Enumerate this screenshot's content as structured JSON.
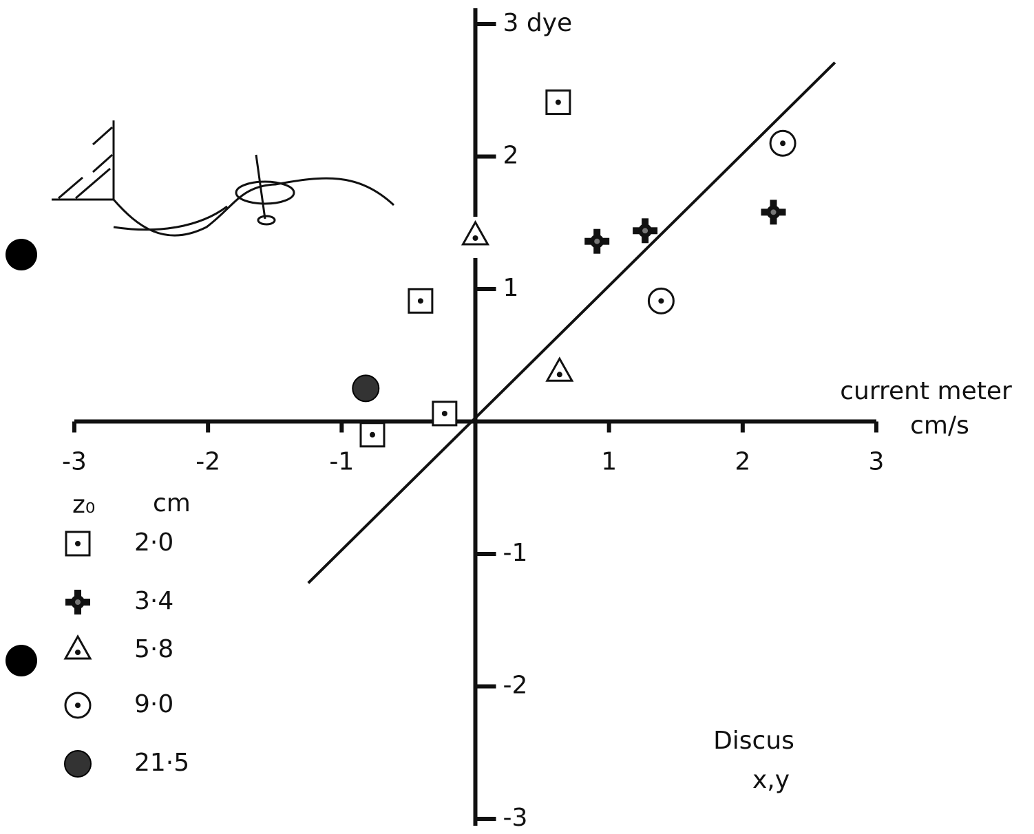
{
  "chart_data": {
    "type": "scatter",
    "xlabel": "current meter",
    "xunit": "cm/s",
    "xlim": [
      -3,
      3
    ],
    "ylim": [
      -3,
      3
    ],
    "xticks": [
      -3,
      -2,
      -1,
      1,
      2,
      3
    ],
    "yticks": [
      -3,
      -2,
      -1,
      1,
      2,
      {
        "value": 3,
        "label": "3 dye"
      }
    ],
    "legend_title": [
      "z₀",
      "cm"
    ],
    "annotation": [
      "Discus",
      "x,y"
    ],
    "series": [
      {
        "name": "2·0",
        "marker": "square-dot",
        "color": "#111",
        "x": [
          0.62,
          -0.41,
          -0.23,
          -0.77
        ],
        "values": [
          2.41,
          0.91,
          0.06,
          -0.1
        ]
      },
      {
        "name": "3·4",
        "marker": "cross",
        "color": "#111",
        "x": [
          0.91,
          1.27,
          2.23
        ],
        "values": [
          1.36,
          1.44,
          1.58
        ]
      },
      {
        "name": "5·8",
        "marker": "triangle-dot",
        "color": "#111",
        "x": [
          0.0,
          0.63
        ],
        "values": [
          1.4,
          0.37
        ]
      },
      {
        "name": "9·0",
        "marker": "circle-dot",
        "color": "#111",
        "x": [
          2.3,
          1.39
        ],
        "values": [
          2.1,
          0.91
        ]
      },
      {
        "name": "21·5",
        "marker": "filled-circle",
        "color": "#333",
        "x": [
          -0.82
        ],
        "values": [
          0.25
        ]
      }
    ],
    "reference_line": {
      "x": [
        -1.25,
        2.69
      ],
      "values": [
        -1.22,
        2.71
      ]
    }
  }
}
